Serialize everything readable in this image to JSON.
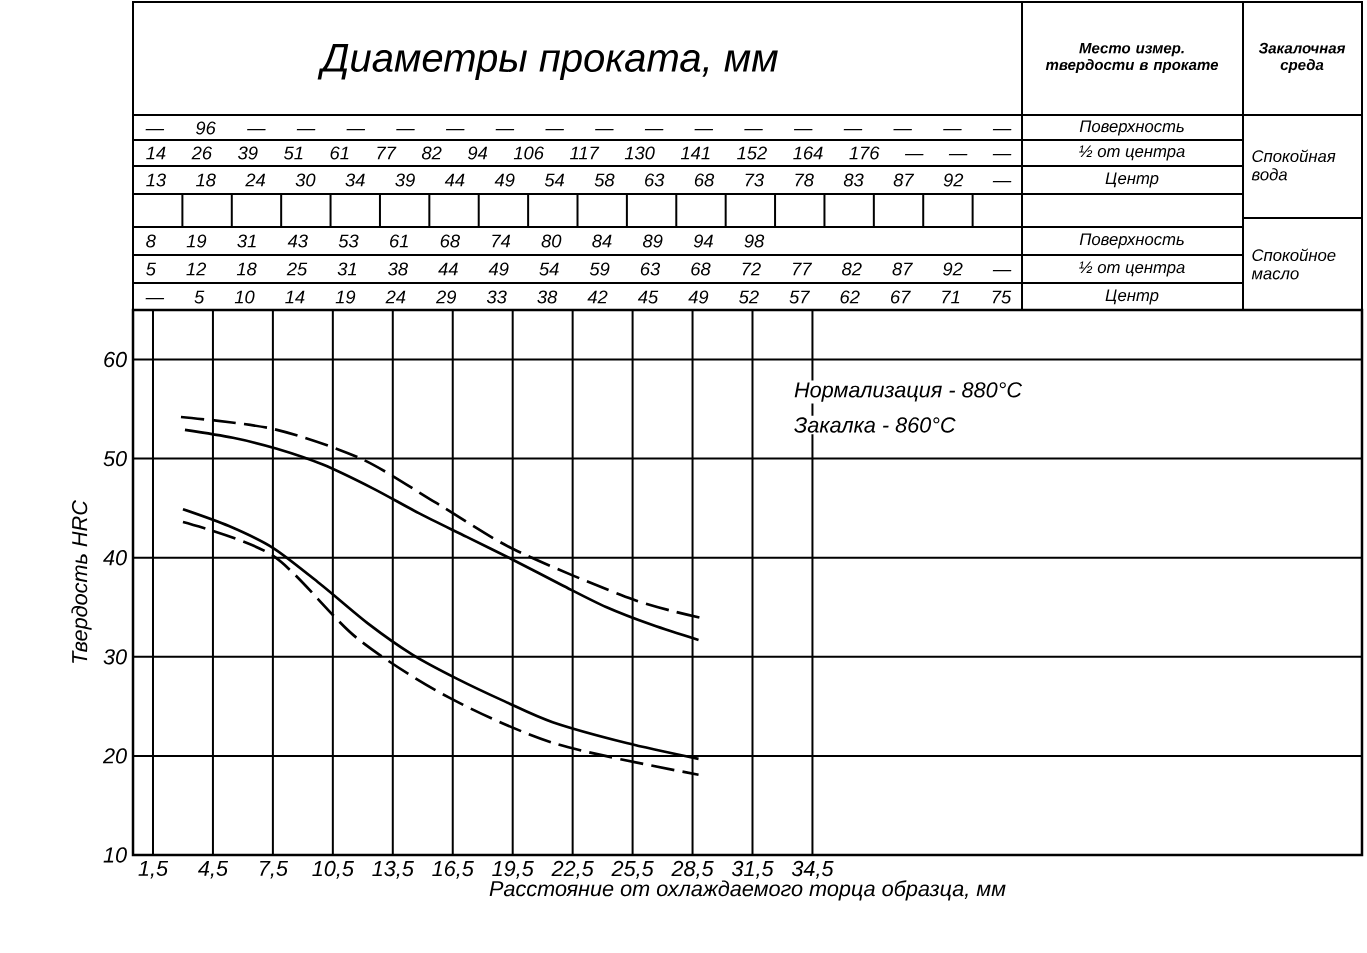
{
  "chart_data": {
    "type": "line",
    "title": "Диаметры проката, мм",
    "xlabel": "Расстояние от охлаждаемого торца образца, мм",
    "ylabel": "Твердость HRC",
    "xlim": [
      0.5,
      62
    ],
    "ylim": [
      10,
      65
    ],
    "xticks": [
      {
        "value": 1.5,
        "label": "1,5"
      },
      {
        "value": 4.5,
        "label": "4,5"
      },
      {
        "value": 7.5,
        "label": "7,5"
      },
      {
        "value": 10.5,
        "label": "10,5"
      },
      {
        "value": 13.5,
        "label": "13,5"
      },
      {
        "value": 16.5,
        "label": "16,5"
      },
      {
        "value": 19.5,
        "label": "19,5"
      },
      {
        "value": 22.5,
        "label": "22,5"
      },
      {
        "value": 25.5,
        "label": "25,5"
      },
      {
        "value": 28.5,
        "label": "28,5"
      },
      {
        "value": 31.5,
        "label": "31,5"
      },
      {
        "value": 34.5,
        "label": "34,5"
      }
    ],
    "yticks": [
      10,
      20,
      30,
      40,
      50,
      60
    ],
    "grid": true,
    "series": [
      {
        "color": "#000000",
        "line_style": "solid",
        "x": [
          3.1,
          5.5,
          7.7,
          10.0,
          12.5,
          14.8,
          17.2,
          19.6,
          22.0,
          24.2,
          26.5,
          28.8
        ],
        "values": [
          52.9,
          52.1,
          51.0,
          49.4,
          47.0,
          44.5,
          42.1,
          39.7,
          37.2,
          35.0,
          33.2,
          31.7
        ]
      },
      {
        "color": "#000000",
        "line_style": "dashed",
        "x": [
          2.9,
          7.5,
          11.9,
          15.7,
          19.6,
          25.5,
          29.0
        ],
        "values": [
          54.2,
          53.0,
          50.0,
          45.5,
          40.8,
          35.8,
          33.9
        ]
      },
      {
        "color": "#000000",
        "line_style": "solid",
        "x": [
          3.0,
          5.3,
          7.5,
          9.9,
          12.3,
          14.5,
          16.7,
          19.1,
          21.5,
          25.2,
          28.8
        ],
        "values": [
          44.9,
          43.2,
          41.0,
          37.3,
          33.3,
          30.2,
          27.8,
          25.5,
          23.4,
          21.3,
          19.7
        ]
      },
      {
        "color": "#000000",
        "line_style": "dashed",
        "x": [
          3.0,
          7.5,
          11.7,
          16.3,
          21.7,
          28.8
        ],
        "values": [
          43.6,
          40.2,
          31.9,
          25.9,
          21.2,
          18.1
        ]
      }
    ],
    "annotations": [
      "Место измер. твердости в прокате",
      "Закалочная среда",
      "— 96 — — — — — — — — — — — — — — — —",
      "Поверхность",
      "14 26 39 51 61 77 82 94 106 117 130 141 152 164 176 — — —",
      "½ от центра",
      "13 18 24 30 34 39 44 49 54 58 63 68 73 78 83 87 92 —",
      "Центр",
      "8 19 31 43 53 61 68 74 80 84 89 94 98",
      "Поверхность",
      "5 12 18 25 31 38 44 49 54 59 63 68 72 77 82 87 92 —",
      "½ от центра",
      "— 5 10 14 19 24 29 33 38 42 45 49 52 57 62 67 71 75",
      "Центр",
      "Спокойная вода",
      "Спокойное масло",
      "Нормализация - 880°C",
      "Закалка - 860°C"
    ]
  }
}
